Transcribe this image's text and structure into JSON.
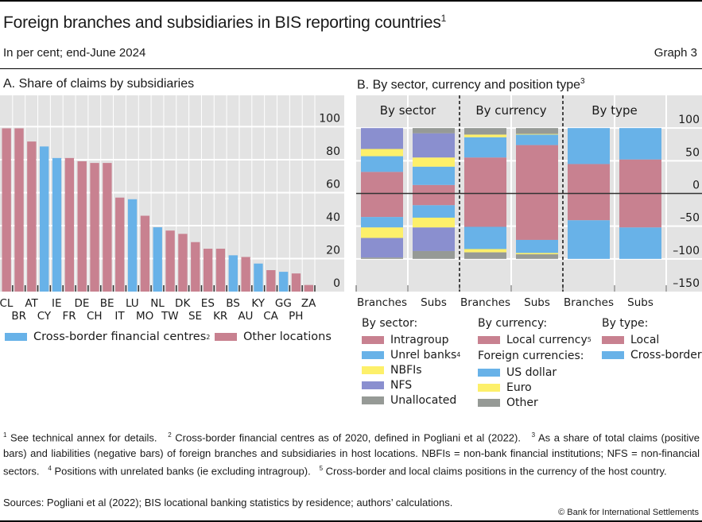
{
  "header": {
    "title": "Foreign branches and subsidiaries in BIS reporting countries",
    "title_note": "1",
    "subtitle": "In per cent; end-June 2024",
    "graph_number": "Graph 3"
  },
  "colors": {
    "other_locations": "#c88190",
    "cross_border_fc": "#68b2e8",
    "intragroup": "#c88190",
    "unrel_banks": "#68b2e8",
    "nbfis": "#fdf06a",
    "nfs": "#8a8fcf",
    "unallocated": "#969a96",
    "plot_bg": "#e3e3e3"
  },
  "chart_data": [
    {
      "type": "bar",
      "panel": "A",
      "title": "A. Share of claims by subsidiaries",
      "xlabel": "",
      "ylabel": "",
      "ylim": [
        0,
        119
      ],
      "yticks": [
        0,
        20,
        40,
        60,
        80,
        100
      ],
      "ytick_labels": [
        "0",
        "20",
        "40",
        "60",
        "80",
        "100"
      ],
      "y_axis_side": "right",
      "grid": true,
      "categories": [
        "CL",
        "BR",
        "AT",
        "CY",
        "IE",
        "FR",
        "DE",
        "CH",
        "BE",
        "IT",
        "LU",
        "MO",
        "NL",
        "TW",
        "DK",
        "SE",
        "ES",
        "KR",
        "BS",
        "AU",
        "KY",
        "CA",
        "GG",
        "PH",
        "ZA"
      ],
      "values": [
        99,
        99,
        91,
        88,
        81,
        81,
        79,
        78,
        78,
        57,
        56,
        46,
        39,
        37,
        35,
        30,
        26,
        26,
        22,
        21,
        17,
        13,
        12,
        11,
        4
      ],
      "groups": [
        "other",
        "other",
        "other",
        "cfc",
        "cfc",
        "other",
        "other",
        "other",
        "other",
        "other",
        "cfc",
        "other",
        "cfc",
        "other",
        "other",
        "other",
        "other",
        "other",
        "cfc",
        "other",
        "cfc",
        "other",
        "cfc",
        "other",
        "other"
      ],
      "legend": [
        {
          "key": "cfc",
          "label": "Cross-border financial centres",
          "note": "2"
        },
        {
          "key": "other",
          "label": "Other locations"
        }
      ],
      "legend_placement": "bottom"
    },
    {
      "type": "bar",
      "stacked": true,
      "panel": "B",
      "title": "B. By sector, currency and position type",
      "title_note": "3",
      "ylim": [
        -150,
        150
      ],
      "yticks": [
        -150,
        -100,
        -50,
        0,
        50,
        100
      ],
      "ytick_labels": [
        "–150",
        "–100",
        "–50",
        "0",
        "50",
        "100"
      ],
      "y_axis_side": "right",
      "grid": true,
      "groups": [
        {
          "name": "By sector",
          "bars": [
            {
              "label": "Branches",
              "positive": [
                {
                  "series": "Intragroup",
                  "value": 33
                },
                {
                  "series": "Unrel banks",
                  "value": 24
                },
                {
                  "series": "NBFIs",
                  "value": 11
                },
                {
                  "series": "NFS",
                  "value": 32
                },
                {
                  "series": "Unallocated",
                  "value": 0
                }
              ],
              "negative": [
                {
                  "series": "Intragroup",
                  "value": -36
                },
                {
                  "series": "Unrel banks",
                  "value": -16
                },
                {
                  "series": "NBFIs",
                  "value": -16
                },
                {
                  "series": "NFS",
                  "value": -30
                },
                {
                  "series": "Unallocated",
                  "value": -2
                }
              ]
            },
            {
              "label": "Subs",
              "positive": [
                {
                  "series": "Intragroup",
                  "value": 13
                },
                {
                  "series": "Unrel banks",
                  "value": 28
                },
                {
                  "series": "NBFIs",
                  "value": 14
                },
                {
                  "series": "NFS",
                  "value": 37
                },
                {
                  "series": "Unallocated",
                  "value": 8
                }
              ],
              "negative": [
                {
                  "series": "Intragroup",
                  "value": -18
                },
                {
                  "series": "Unrel banks",
                  "value": -19
                },
                {
                  "series": "NBFIs",
                  "value": -15
                },
                {
                  "series": "NFS",
                  "value": -36
                },
                {
                  "series": "Unallocated",
                  "value": -12
                }
              ]
            }
          ]
        },
        {
          "name": "By currency",
          "bars": [
            {
              "label": "Branches",
              "positive": [
                {
                  "series": "Local currency",
                  "value": 55
                },
                {
                  "series": "US dollar",
                  "value": 31
                },
                {
                  "series": "Euro",
                  "value": 4
                },
                {
                  "series": "Other",
                  "value": 10
                }
              ],
              "negative": [
                {
                  "series": "Local currency",
                  "value": -51
                },
                {
                  "series": "US dollar",
                  "value": -34
                },
                {
                  "series": "Euro",
                  "value": -5
                },
                {
                  "series": "Other",
                  "value": -10
                }
              ]
            },
            {
              "label": "Subs",
              "positive": [
                {
                  "series": "Local currency",
                  "value": 74
                },
                {
                  "series": "US dollar",
                  "value": 16
                },
                {
                  "series": "Euro",
                  "value": 1
                },
                {
                  "series": "Other",
                  "value": 9
                }
              ],
              "negative": [
                {
                  "series": "Local currency",
                  "value": -71
                },
                {
                  "series": "US dollar",
                  "value": -20
                },
                {
                  "series": "Euro",
                  "value": -2
                },
                {
                  "series": "Other",
                  "value": -7
                }
              ]
            }
          ]
        },
        {
          "name": "By type",
          "bars": [
            {
              "label": "Branches",
              "positive": [
                {
                  "series": "Local",
                  "value": 45
                },
                {
                  "series": "Cross-border",
                  "value": 55
                }
              ],
              "negative": [
                {
                  "series": "Local",
                  "value": -41
                },
                {
                  "series": "Cross-border",
                  "value": -59
                }
              ]
            },
            {
              "label": "Subs",
              "positive": [
                {
                  "series": "Local",
                  "value": 52
                },
                {
                  "series": "Cross-border",
                  "value": 48
                }
              ],
              "negative": [
                {
                  "series": "Local",
                  "value": -52
                },
                {
                  "series": "Cross-border",
                  "value": -48
                }
              ]
            }
          ]
        }
      ],
      "series_colors": {
        "Intragroup": "#c88190",
        "Unrel banks": "#68b2e8",
        "NBFIs": "#fdf06a",
        "NFS": "#8a8fcf",
        "Unallocated": "#969a96",
        "Local currency": "#c88190",
        "US dollar": "#68b2e8",
        "Euro": "#fdf06a",
        "Other": "#969a96",
        "Local": "#c88190",
        "Cross-border": "#68b2e8"
      },
      "legend": {
        "by_sector": {
          "heading": "By sector:",
          "items": [
            {
              "label": "Intragroup",
              "color": "#c88190"
            },
            {
              "label": "Unrel banks",
              "color": "#68b2e8",
              "note": "4"
            },
            {
              "label": "NBFIs",
              "color": "#fdf06a"
            },
            {
              "label": "NFS",
              "color": "#8a8fcf"
            },
            {
              "label": "Unallocated",
              "color": "#969a96"
            }
          ]
        },
        "by_currency": {
          "heading": "By currency:",
          "items": [
            {
              "label": "Local currency",
              "color": "#c88190",
              "note": "5"
            }
          ],
          "subheading": "Foreign currencies:",
          "sub_items": [
            {
              "label": "US dollar",
              "color": "#68b2e8"
            },
            {
              "label": "Euro",
              "color": "#fdf06a"
            },
            {
              "label": "Other",
              "color": "#969a96"
            }
          ]
        },
        "by_type": {
          "heading": "By type:",
          "items": [
            {
              "label": "Local",
              "color": "#c88190"
            },
            {
              "label": "Cross-border",
              "color": "#68b2e8"
            }
          ]
        }
      },
      "legend_placement": "bottom"
    }
  ],
  "footnotes": {
    "n1_num": "1",
    "n1": "See technical annex for details.",
    "n2_num": "2",
    "n2": "Cross-border financial centres as of 2020, defined in Pogliani et al (2022).",
    "n3_num": "3",
    "n3": "As a share of total claims (positive bars) and liabilities (negative bars) of foreign branches and subsidiaries in host locations. NBFIs = non-bank financial institutions; NFS = non-financial sectors.",
    "n4_num": "4",
    "n4": "Positions with unrelated banks (ie excluding intragroup).",
    "n5_num": "5",
    "n5": "Cross-border and local claims positions in the currency of the host country."
  },
  "sources": "Sources: Pogliani et al (2022); BIS locational banking statistics by residence; authors’ calculations.",
  "copyright": "© Bank for International Settlements"
}
